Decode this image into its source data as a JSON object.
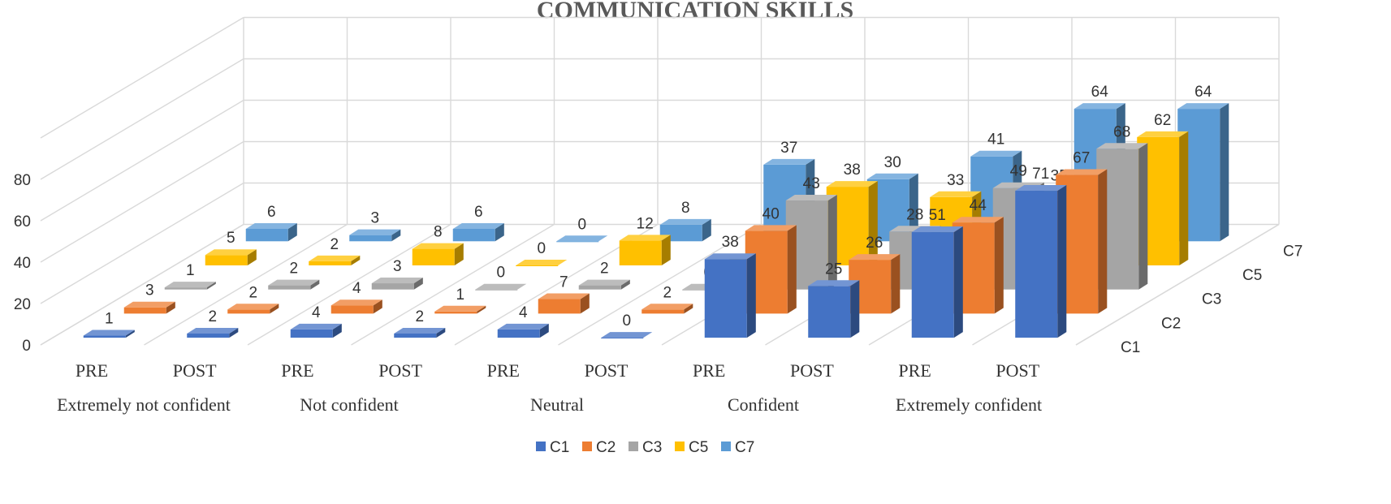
{
  "chart_data": {
    "type": "bar",
    "title": "COMMUNICATION SKILLS",
    "categories": [
      "PRE",
      "POST",
      "PRE",
      "POST",
      "PRE",
      "POST",
      "PRE",
      "POST",
      "PRE",
      "POST"
    ],
    "groups": [
      "Extremely not confident",
      "Not confident",
      "Neutral",
      "Confident",
      "Extremely confident"
    ],
    "series": [
      {
        "name": "C1",
        "color": "#4472C4",
        "values": [
          1,
          2,
          4,
          2,
          4,
          0,
          38,
          25,
          51,
          71
        ]
      },
      {
        "name": "C2",
        "color": "#ED7D31",
        "values": [
          3,
          2,
          4,
          1,
          7,
          2,
          40,
          26,
          44,
          67
        ]
      },
      {
        "name": "C3",
        "color": "#A5A5A5",
        "values": [
          1,
          2,
          3,
          0,
          2,
          0,
          43,
          28,
          49,
          68
        ]
      },
      {
        "name": "C5",
        "color": "#FFC000",
        "values": [
          5,
          2,
          8,
          0,
          12,
          1,
          38,
          33,
          35,
          62
        ]
      },
      {
        "name": "C7",
        "color": "#5B9BD5",
        "values": [
          6,
          3,
          6,
          0,
          8,
          37,
          30,
          41,
          64,
          64
        ]
      }
    ],
    "y_ticks": [
      "0",
      "20",
      "40",
      "60",
      "80"
    ],
    "ylim": [
      0,
      100
    ],
    "depth_labels": [
      "C1",
      "C2",
      "C3",
      "C5",
      "C7"
    ],
    "grid": true,
    "legend_position": "bottom"
  }
}
